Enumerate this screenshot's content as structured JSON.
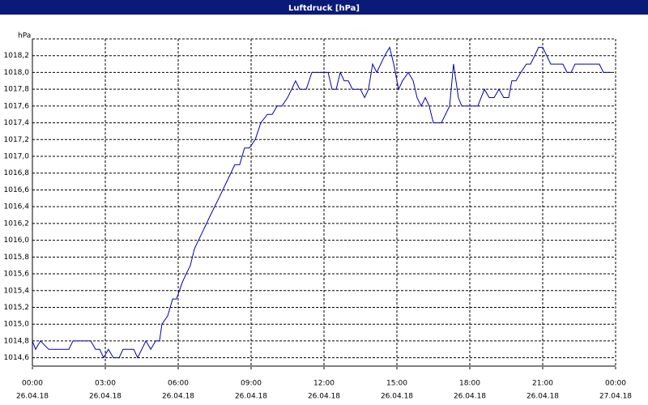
{
  "chart_data": {
    "type": "line",
    "title": "Luftdruck [hPa]",
    "y_label": "hPa",
    "x": [
      0,
      0.13,
      0.33,
      0.67,
      1.5,
      1.67,
      2.4,
      2.6,
      2.77,
      2.93,
      3.13,
      3.33,
      3.57,
      3.73,
      4.17,
      4.33,
      4.67,
      4.87,
      5.07,
      5.23,
      5.33,
      5.57,
      5.77,
      5.93,
      6.17,
      6.33,
      6.5,
      6.67,
      7,
      7.33,
      7.67,
      8,
      8.33,
      8.53,
      8.73,
      8.93,
      9.17,
      9.4,
      9.67,
      9.87,
      10.07,
      10.27,
      10.5,
      10.67,
      10.83,
      11,
      11.27,
      11.5,
      12.17,
      12.33,
      12.5,
      12.67,
      12.83,
      13,
      13.17,
      13.5,
      13.67,
      13.83,
      14,
      14.17,
      14.5,
      14.7,
      14.87,
      15.07,
      15.23,
      15.47,
      15.67,
      15.83,
      16,
      16.17,
      16.33,
      16.5,
      16.83,
      17.17,
      17.33,
      17.53,
      17.67,
      18.33,
      18.6,
      18.8,
      19,
      19.2,
      19.4,
      19.6,
      19.73,
      19.9,
      20.1,
      20.33,
      20.5,
      20.67,
      20.83,
      21,
      21.33,
      21.83,
      22,
      22.17,
      22.33,
      23.33,
      23.5,
      23.83
    ],
    "series": [
      {
        "name": "Luftdruck",
        "color": "#0000b0",
        "values": [
          1014.8,
          1014.7,
          1014.8,
          1014.7,
          1014.7,
          1014.8,
          1014.8,
          1014.7,
          1014.7,
          1014.6,
          1014.7,
          1014.6,
          1014.6,
          1014.7,
          1014.7,
          1014.6,
          1014.8,
          1014.7,
          1014.8,
          1014.8,
          1015.0,
          1015.1,
          1015.3,
          1015.3,
          1015.5,
          1015.6,
          1015.7,
          1015.9,
          1016.1,
          1016.3,
          1016.5,
          1016.7,
          1016.9,
          1016.9,
          1017.1,
          1017.1,
          1017.2,
          1017.4,
          1017.5,
          1017.5,
          1017.6,
          1017.6,
          1017.7,
          1017.8,
          1017.9,
          1017.8,
          1017.8,
          1018.0,
          1018.0,
          1017.8,
          1017.8,
          1018.0,
          1017.9,
          1017.9,
          1017.8,
          1017.8,
          1017.7,
          1017.8,
          1018.1,
          1018.0,
          1018.2,
          1018.3,
          1018.1,
          1017.8,
          1017.9,
          1018.0,
          1017.9,
          1017.7,
          1017.6,
          1017.7,
          1017.6,
          1017.4,
          1017.4,
          1017.6,
          1018.1,
          1017.7,
          1017.6,
          1017.6,
          1017.8,
          1017.7,
          1017.7,
          1017.8,
          1017.7,
          1017.7,
          1017.9,
          1017.9,
          1018.0,
          1018.1,
          1018.1,
          1018.2,
          1018.3,
          1018.3,
          1018.1,
          1018.1,
          1018.0,
          1018.0,
          1018.1,
          1018.1,
          1018.0,
          1018.0
        ]
      }
    ],
    "xlim": [
      0,
      24
    ],
    "xticks": [
      {
        "value": 0,
        "label": "00:00",
        "date": "26.04.18"
      },
      {
        "value": 3,
        "label": "03:00",
        "date": "26.04.18"
      },
      {
        "value": 6,
        "label": "06:00",
        "date": "26.04.18"
      },
      {
        "value": 9,
        "label": "09:00",
        "date": "26.04.18"
      },
      {
        "value": 12,
        "label": "12:00",
        "date": "26.04.18"
      },
      {
        "value": 15,
        "label": "15:00",
        "date": "26.04.18"
      },
      {
        "value": 18,
        "label": "18:00",
        "date": "26.04.18"
      },
      {
        "value": 21,
        "label": "21:00",
        "date": "26.04.18"
      },
      {
        "value": 24,
        "label": "00:00",
        "date": "27.04.18"
      }
    ],
    "ylim": [
      1014.5,
      1018.4
    ],
    "yticks": [
      {
        "value": 1014.6,
        "label": "1014,6"
      },
      {
        "value": 1014.8,
        "label": "1014,8"
      },
      {
        "value": 1015.0,
        "label": "1015,0"
      },
      {
        "value": 1015.2,
        "label": "1015,2"
      },
      {
        "value": 1015.4,
        "label": "1015,4"
      },
      {
        "value": 1015.6,
        "label": "1015,6"
      },
      {
        "value": 1015.8,
        "label": "1015,8"
      },
      {
        "value": 1016.0,
        "label": "1016,0"
      },
      {
        "value": 1016.2,
        "label": "1016,2"
      },
      {
        "value": 1016.4,
        "label": "1016,4"
      },
      {
        "value": 1016.6,
        "label": "1016,6"
      },
      {
        "value": 1016.8,
        "label": "1016,8"
      },
      {
        "value": 1017.0,
        "label": "1017,0"
      },
      {
        "value": 1017.2,
        "label": "1017,2"
      },
      {
        "value": 1017.4,
        "label": "1017,4"
      },
      {
        "value": 1017.6,
        "label": "1017,6"
      },
      {
        "value": 1017.8,
        "label": "1017,8"
      },
      {
        "value": 1018.0,
        "label": "1018,0"
      },
      {
        "value": 1018.2,
        "label": "1018,2"
      }
    ],
    "grid": true
  }
}
